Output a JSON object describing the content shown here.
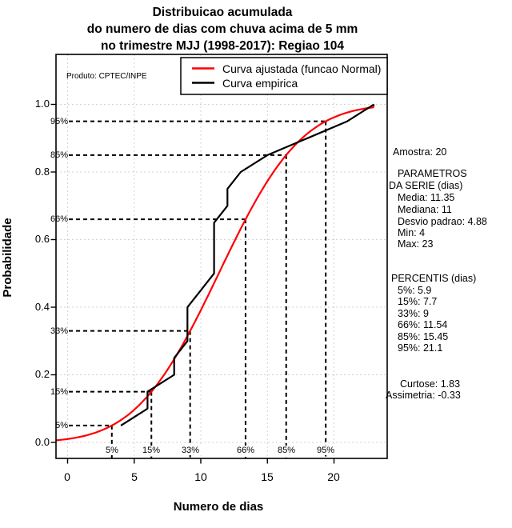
{
  "title": {
    "line1": "Distribuicao acumulada",
    "line2": "do numero de dias com chuva acima de 5 mm",
    "line3": "no trimestre MJJ (1998-2017): Regiao 104"
  },
  "produto_label": "Produto: CPTEC/INPE",
  "legend": {
    "items": [
      {
        "label": "Curva ajustada (funcao Normal)",
        "color": "#ff0000"
      },
      {
        "label": "Curva empirica",
        "color": "#000000"
      }
    ]
  },
  "axes": {
    "y_label": "Probabilidade",
    "x_label": "Numero de dias",
    "y_tick_labels": [
      "0.0",
      "0.2",
      "0.4",
      "0.6",
      "0.8",
      "1.0"
    ],
    "x_tick_labels": [
      "0",
      "5",
      "10",
      "15",
      "20"
    ]
  },
  "stats_panel": {
    "amostra": "Amostra: 20",
    "params_header_1": "PARAMETROS",
    "params_header_2": "DA SERIE (dias)",
    "media": "Media: 11.35",
    "mediana": "Mediana: 11",
    "desvio": "Desvio padrao: 4.88",
    "min": "Min: 4",
    "max": "Max: 23",
    "percentis_header": "PERCENTIS (dias)",
    "p5": "5%: 5.9",
    "p15": "15%: 7.7",
    "p33": "33%: 9",
    "p66": "66%: 11.54",
    "p85": "85%: 15.45",
    "p95": "95%: 21.1",
    "curtose": "Curtose: 1.83",
    "assimetria": "Assimetria: -0.33"
  },
  "chart_data": {
    "type": "line",
    "title": "Distribuicao acumulada do numero de dias com chuva acima de 5 mm no trimestre MJJ (1998-2017): Regiao 104",
    "xlabel": "Numero de dias",
    "ylabel": "Probabilidade",
    "xlim": [
      -0.9,
      24
    ],
    "ylim": [
      -0.01,
      1.05
    ],
    "x_ticks": [
      0,
      5,
      10,
      15,
      20
    ],
    "y_ticks": [
      0,
      0.2,
      0.4,
      0.6,
      0.8,
      1.0
    ],
    "grid": true,
    "legend_position": "top-right",
    "sample_size": 20,
    "series": [
      {
        "name": "Curva ajustada (funcao Normal)",
        "type": "normal_cdf",
        "color": "#ff0000",
        "mean": 11.35,
        "sd": 4.88,
        "x_start": -0.85,
        "x_end": 23,
        "end_at": [
          23,
          1.0
        ]
      },
      {
        "name": "Curva empirica",
        "type": "polyline",
        "color": "#000000",
        "points": [
          [
            4,
            0.05
          ],
          [
            6,
            0.1
          ],
          [
            6,
            0.15
          ],
          [
            8,
            0.2
          ],
          [
            8,
            0.25
          ],
          [
            9,
            0.3
          ],
          [
            9,
            0.35
          ],
          [
            9,
            0.4
          ],
          [
            10,
            0.45
          ],
          [
            11,
            0.5
          ],
          [
            11,
            0.55
          ],
          [
            11,
            0.6
          ],
          [
            11,
            0.65
          ],
          [
            12,
            0.7
          ],
          [
            12,
            0.75
          ],
          [
            13,
            0.8
          ],
          [
            15,
            0.85
          ],
          [
            18,
            0.9
          ],
          [
            21,
            0.95
          ],
          [
            23,
            1.0
          ]
        ]
      }
    ],
    "percentile_guides": {
      "labels": [
        "5%",
        "15%",
        "33%",
        "66%",
        "85%",
        "95%"
      ],
      "probs": [
        0.05,
        0.15,
        0.33,
        0.66,
        0.85,
        0.95
      ],
      "days": [
        3.32,
        6.29,
        9.2,
        13.36,
        16.41,
        19.38
      ]
    },
    "grid_color": "#d3d3d3"
  }
}
